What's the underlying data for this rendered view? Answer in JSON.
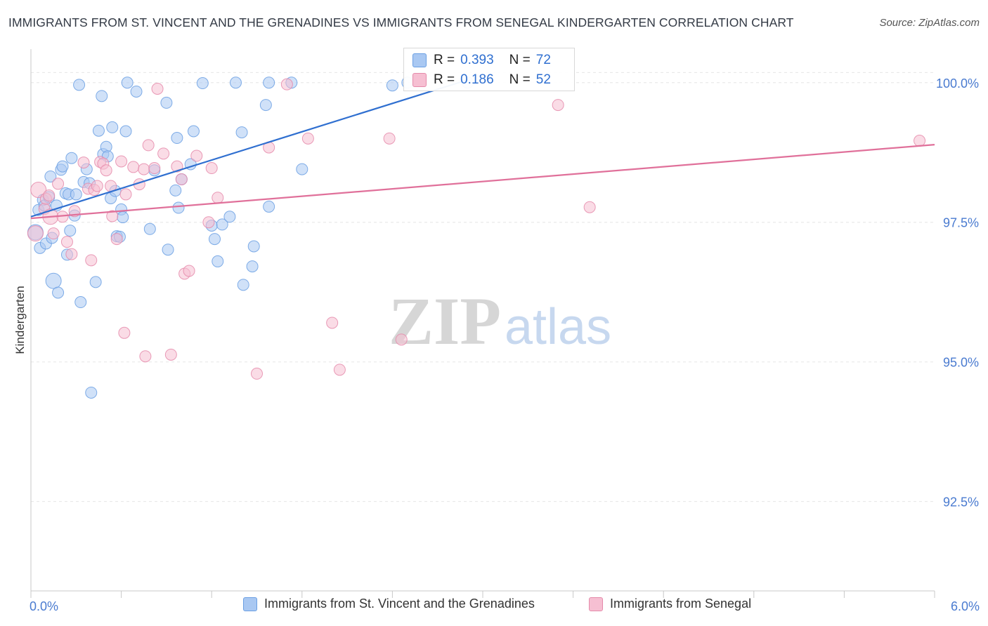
{
  "title": "IMMIGRANTS FROM ST. VINCENT AND THE GRENADINES VS IMMIGRANTS FROM SENEGAL KINDERGARTEN CORRELATION CHART",
  "source": "Source: ZipAtlas.com",
  "watermark": {
    "zip": "ZIP",
    "atlas": "atlas"
  },
  "colors": {
    "blue": "#6a9fe3",
    "blue_fill": "#a9c8f2",
    "blue_line": "#2f6fd0",
    "pink": "#e58aaa",
    "pink_fill": "#f6bfd2",
    "pink_line": "#e0709a",
    "tick_text": "#4a7bd0"
  },
  "legend_top": {
    "rows": [
      {
        "r_label": "R =",
        "r_value": "0.393",
        "n_label": "N =",
        "n_value": "72"
      },
      {
        "r_label": "R =",
        "r_value": "0.186",
        "n_label": "N =",
        "n_value": "52"
      }
    ]
  },
  "legend_bottom": {
    "series1": "Immigrants from St. Vincent and the Grenadines",
    "series2": "Immigrants from Senegal"
  },
  "chart_data": {
    "type": "scatter",
    "title": "IMMIGRANTS FROM ST. VINCENT AND THE GRENADINES VS IMMIGRANTS FROM SENEGAL KINDERGARTEN CORRELATION CHART",
    "xlabel": "",
    "ylabel": "Kindergarten",
    "xlim": [
      0,
      6.0
    ],
    "ylim": [
      90.9,
      100.6
    ],
    "x_tick_labels": [
      "0.0%",
      "6.0%"
    ],
    "y_ticks": [
      92.5,
      95.0,
      97.5,
      100.0
    ],
    "y_tick_labels": [
      "92.5%",
      "95.0%",
      "97.5%",
      "100.0%"
    ],
    "series": [
      {
        "name": "Immigrants from St. Vincent and the Grenadines",
        "R": 0.393,
        "N": 72,
        "trend": {
          "x": [
            0.0,
            2.9
          ],
          "y": [
            97.6,
            100.05
          ]
        },
        "points": [
          [
            0.03,
            97.32,
            2
          ],
          [
            0.05,
            97.72,
            1
          ],
          [
            0.06,
            97.04,
            1
          ],
          [
            0.08,
            97.9,
            1
          ],
          [
            0.09,
            97.8,
            1
          ],
          [
            0.1,
            97.12,
            1
          ],
          [
            0.12,
            97.95,
            1
          ],
          [
            0.13,
            98.32,
            1
          ],
          [
            0.14,
            97.22,
            1
          ],
          [
            0.15,
            96.45,
            2
          ],
          [
            0.17,
            97.8,
            1
          ],
          [
            0.18,
            96.24,
            1
          ],
          [
            0.2,
            98.44,
            1
          ],
          [
            0.21,
            98.5,
            1
          ],
          [
            0.23,
            98.02,
            1
          ],
          [
            0.24,
            96.92,
            1
          ],
          [
            0.25,
            98.0,
            1
          ],
          [
            0.26,
            97.35,
            1
          ],
          [
            0.27,
            98.65,
            1
          ],
          [
            0.29,
            97.62,
            1
          ],
          [
            0.3,
            98.0,
            1
          ],
          [
            0.32,
            99.96,
            1
          ],
          [
            0.33,
            96.07,
            1
          ],
          [
            0.35,
            98.22,
            1
          ],
          [
            0.37,
            98.45,
            1
          ],
          [
            0.39,
            98.2,
            1
          ],
          [
            0.4,
            94.45,
            1
          ],
          [
            0.43,
            96.43,
            1
          ],
          [
            0.45,
            99.14,
            1
          ],
          [
            0.47,
            99.76,
            1
          ],
          [
            0.48,
            98.72,
            1
          ],
          [
            0.5,
            98.85,
            1
          ],
          [
            0.51,
            98.68,
            1
          ],
          [
            0.53,
            97.93,
            1
          ],
          [
            0.54,
            99.2,
            1
          ],
          [
            0.56,
            98.06,
            1
          ],
          [
            0.57,
            97.25,
            1
          ],
          [
            0.59,
            97.24,
            1
          ],
          [
            0.6,
            97.73,
            1
          ],
          [
            0.61,
            97.59,
            1
          ],
          [
            0.63,
            99.13,
            1
          ],
          [
            0.64,
            100.0,
            1
          ],
          [
            0.7,
            99.84,
            1
          ],
          [
            0.79,
            97.38,
            1
          ],
          [
            0.82,
            98.43,
            1
          ],
          [
            0.9,
            99.64,
            1
          ],
          [
            0.91,
            97.01,
            1
          ],
          [
            0.96,
            98.07,
            1
          ],
          [
            0.97,
            99.01,
            1
          ],
          [
            0.98,
            97.76,
            1
          ],
          [
            1.0,
            98.27,
            1
          ],
          [
            1.06,
            98.54,
            1
          ],
          [
            1.08,
            99.13,
            1
          ],
          [
            1.14,
            99.99,
            1
          ],
          [
            1.2,
            97.44,
            1
          ],
          [
            1.22,
            97.2,
            1
          ],
          [
            1.24,
            96.8,
            1
          ],
          [
            1.27,
            97.46,
            1
          ],
          [
            1.32,
            97.6,
            1
          ],
          [
            1.36,
            100.0,
            1
          ],
          [
            1.4,
            99.11,
            1
          ],
          [
            1.41,
            96.38,
            1
          ],
          [
            1.47,
            96.71,
            1
          ],
          [
            1.48,
            97.07,
            1
          ],
          [
            1.56,
            99.6,
            1
          ],
          [
            1.58,
            100.0,
            1
          ],
          [
            1.58,
            97.78,
            1
          ],
          [
            1.73,
            100.0,
            1
          ],
          [
            1.8,
            98.45,
            1
          ],
          [
            2.4,
            99.95,
            1
          ],
          [
            2.5,
            100.0,
            1
          ],
          [
            2.9,
            100.0,
            1
          ]
        ]
      },
      {
        "name": "Immigrants from Senegal",
        "R": 0.186,
        "N": 52,
        "trend": {
          "x": [
            0.0,
            6.0
          ],
          "y": [
            97.57,
            98.89
          ]
        },
        "points": [
          [
            0.03,
            97.3,
            2
          ],
          [
            0.05,
            98.08,
            2
          ],
          [
            0.09,
            97.74,
            1
          ],
          [
            0.1,
            97.92,
            1
          ],
          [
            0.12,
            97.98,
            1
          ],
          [
            0.13,
            97.6,
            2
          ],
          [
            0.15,
            97.3,
            1
          ],
          [
            0.18,
            98.19,
            1
          ],
          [
            0.21,
            97.6,
            1
          ],
          [
            0.24,
            97.15,
            1
          ],
          [
            0.27,
            96.93,
            1
          ],
          [
            0.29,
            97.7,
            1
          ],
          [
            0.35,
            98.57,
            1
          ],
          [
            0.38,
            98.1,
            1
          ],
          [
            0.4,
            96.82,
            1
          ],
          [
            0.42,
            98.08,
            1
          ],
          [
            0.44,
            98.15,
            1
          ],
          [
            0.46,
            98.58,
            1
          ],
          [
            0.48,
            98.55,
            1
          ],
          [
            0.5,
            98.43,
            1
          ],
          [
            0.53,
            98.15,
            1
          ],
          [
            0.54,
            97.61,
            1
          ],
          [
            0.57,
            97.2,
            1
          ],
          [
            0.6,
            98.59,
            1
          ],
          [
            0.62,
            95.52,
            1
          ],
          [
            0.63,
            98.0,
            1
          ],
          [
            0.68,
            98.49,
            1
          ],
          [
            0.72,
            98.18,
            1
          ],
          [
            0.75,
            98.45,
            1
          ],
          [
            0.76,
            95.1,
            1
          ],
          [
            0.78,
            98.88,
            1
          ],
          [
            0.82,
            98.47,
            1
          ],
          [
            0.84,
            99.89,
            1
          ],
          [
            0.88,
            98.73,
            1
          ],
          [
            0.93,
            95.13,
            1
          ],
          [
            0.97,
            98.5,
            1
          ],
          [
            1.0,
            98.27,
            1
          ],
          [
            1.02,
            96.58,
            1
          ],
          [
            1.05,
            96.63,
            1
          ],
          [
            1.1,
            98.69,
            1
          ],
          [
            1.18,
            97.5,
            1
          ],
          [
            1.2,
            98.47,
            1
          ],
          [
            1.24,
            97.94,
            1
          ],
          [
            1.5,
            94.79,
            1
          ],
          [
            1.58,
            98.84,
            1
          ],
          [
            1.7,
            99.97,
            1
          ],
          [
            1.84,
            99.0,
            1
          ],
          [
            2.0,
            95.7,
            1
          ],
          [
            2.05,
            94.86,
            1
          ],
          [
            2.38,
            99.0,
            1
          ],
          [
            2.46,
            95.4,
            1
          ],
          [
            3.5,
            99.6,
            1
          ],
          [
            3.71,
            97.77,
            1
          ],
          [
            5.9,
            98.96,
            1
          ]
        ]
      }
    ]
  }
}
